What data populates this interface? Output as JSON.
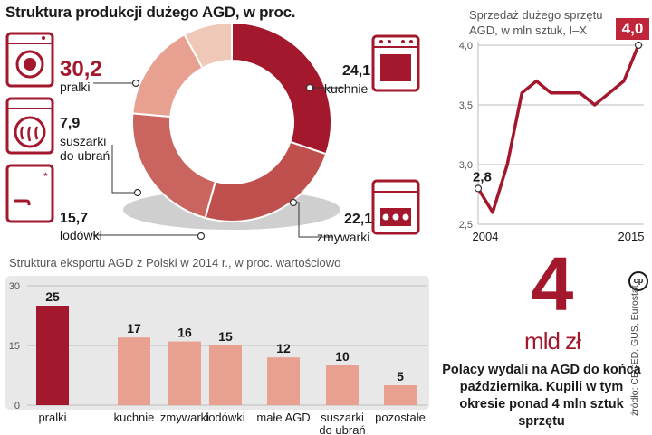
{
  "colors": {
    "accent": "#a3182c",
    "dark": "#a3182c",
    "mid": "#c9645f",
    "light": "#e8a090",
    "pale": "#f0c8b8",
    "panel": "#e8e8e8"
  },
  "chart_data": [
    {
      "type": "pie",
      "title": "Struktura produkcji dużego AGD, w proc.",
      "categories": [
        "pralki",
        "kuchnie",
        "zmywarki",
        "lodówki",
        "suszarki do ubrań"
      ],
      "value_labels": [
        "30,2",
        "24,1",
        "22,1",
        "15,7",
        "7,9"
      ],
      "values": [
        30.2,
        24.1,
        22.1,
        15.7,
        7.9
      ],
      "icons": [
        "washing-machine-icon",
        "stove-icon",
        "dishwasher-icon",
        "fridge-icon",
        "dryer-icon"
      ]
    },
    {
      "type": "line",
      "title": "Sprzedaż dużego sprzętu AGD, w mln sztuk, I–X",
      "x": [
        2004,
        2005,
        2006,
        2007,
        2008,
        2009,
        2010,
        2011,
        2012,
        2013,
        2014,
        2015
      ],
      "y": [
        2.8,
        2.6,
        3.0,
        3.6,
        3.7,
        3.6,
        3.6,
        3.6,
        3.5,
        3.6,
        3.7,
        4.0
      ],
      "x_tick_labels": [
        "2004",
        "2015"
      ],
      "ylim": [
        2.5,
        4.0
      ],
      "y_ticks": [
        "2,5",
        "3,0",
        "3,5",
        "4,0"
      ],
      "start_label": "2,8",
      "end_label": "4,0"
    },
    {
      "type": "bar",
      "title": "Struktura eksportu AGD z Polski w 2014 r., w proc. wartościowo",
      "categories": [
        "pralki",
        "kuchnie",
        "zmywarki",
        "lodówki",
        "małe AGD",
        "suszarki do ubrań",
        "pozostałe"
      ],
      "values": [
        25,
        17,
        16,
        15,
        12,
        10,
        5
      ],
      "ylim": [
        0,
        30
      ],
      "y_ticks": [
        "0",
        "15",
        "30"
      ]
    }
  ],
  "highlight": {
    "number": "4",
    "unit": "mld zł"
  },
  "summary": "Polacy wydali na AGD do końca października. Kupili w tym okresie ponad 4 mln sztuk sprzętu",
  "source": "źródło: CECED, GUS, Eurostat",
  "logo": "cp"
}
